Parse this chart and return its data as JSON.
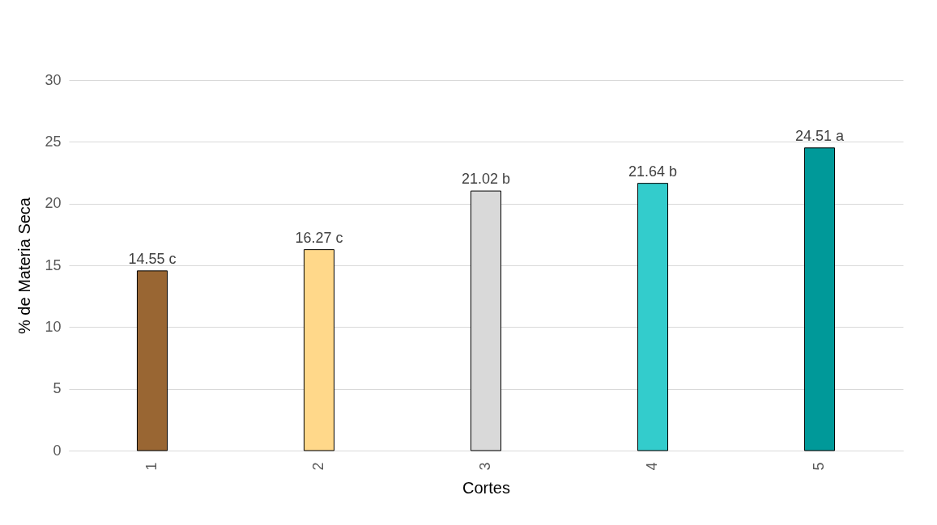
{
  "chart_data": {
    "type": "bar",
    "xlabel": "Cortes",
    "ylabel": "% de Materia Seca",
    "categories": [
      "1",
      "2",
      "3",
      "4",
      "5"
    ],
    "values": [
      14.55,
      16.27,
      21.02,
      21.64,
      24.51
    ],
    "colors": [
      "#996633",
      "#ffd88a",
      "#d9d9d9",
      "#33cccc",
      "#009999"
    ],
    "value_labels": [
      "14.55 c",
      "16.27 c",
      "21.02 b",
      "21.64 b",
      "24.51 a"
    ],
    "ylim": [
      0,
      30
    ],
    "yticks": [
      0,
      5,
      10,
      15,
      20,
      25,
      30
    ],
    "grid": "y",
    "legend": false
  }
}
